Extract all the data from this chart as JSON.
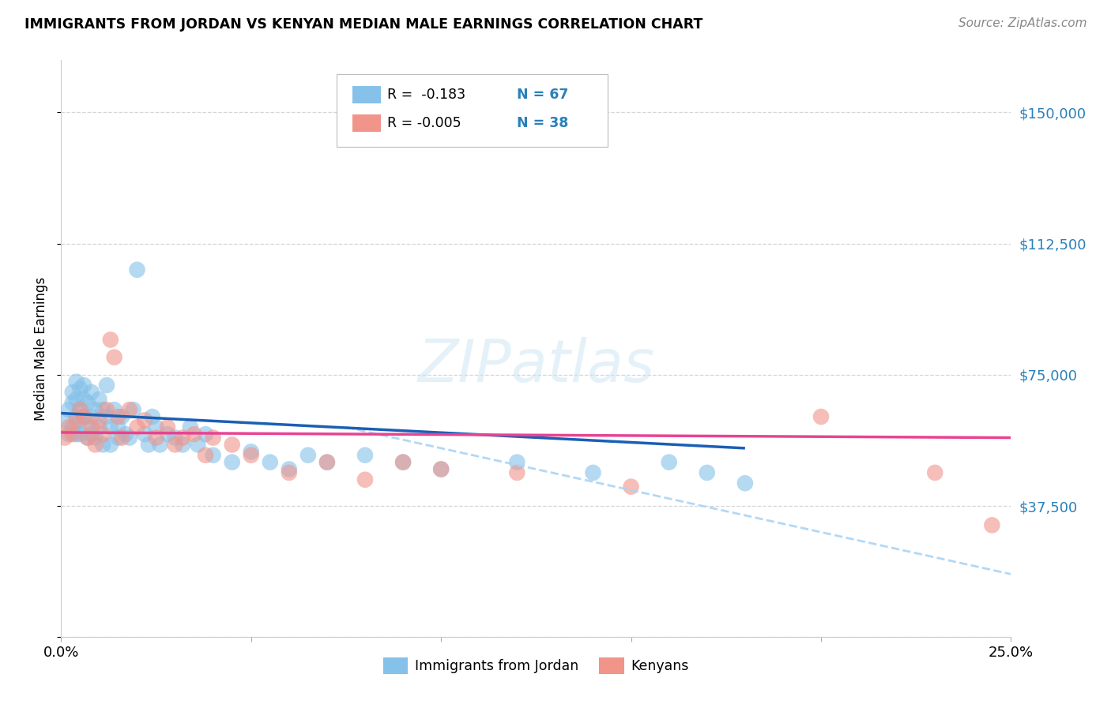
{
  "title": "IMMIGRANTS FROM JORDAN VS KENYAN MEDIAN MALE EARNINGS CORRELATION CHART",
  "source": "Source: ZipAtlas.com",
  "ylabel": "Median Male Earnings",
  "xlim": [
    0.0,
    0.25
  ],
  "ylim": [
    0,
    165000
  ],
  "yticks": [
    0,
    37500,
    75000,
    112500,
    150000
  ],
  "xticks": [
    0.0,
    0.05,
    0.1,
    0.15,
    0.2,
    0.25
  ],
  "xtick_labels": [
    "0.0%",
    "",
    "",
    "",
    "",
    "25.0%"
  ],
  "ytick_labels_right": [
    "$37,500",
    "$75,000",
    "$112,500",
    "$150,000"
  ],
  "ytick_vals_right": [
    37500,
    75000,
    112500,
    150000
  ],
  "legend_R1": "R =  -0.183",
  "legend_N1": "N = 67",
  "legend_R2": "R = -0.005",
  "legend_N2": "N = 38",
  "color_jordan": "#85c1e9",
  "color_kenyan": "#f1948a",
  "color_jordan_line": "#1a5fb4",
  "color_kenyan_line": "#e84393",
  "color_dashed": "#aad4f5",
  "color_ytick_labels": "#2980b9",
  "background_color": "#ffffff",
  "grid_color": "#cccccc",
  "jordan_x": [
    0.001,
    0.002,
    0.002,
    0.003,
    0.003,
    0.003,
    0.004,
    0.004,
    0.004,
    0.004,
    0.005,
    0.005,
    0.005,
    0.005,
    0.006,
    0.006,
    0.006,
    0.007,
    0.007,
    0.007,
    0.008,
    0.008,
    0.008,
    0.009,
    0.009,
    0.01,
    0.01,
    0.011,
    0.011,
    0.012,
    0.012,
    0.013,
    0.013,
    0.014,
    0.015,
    0.015,
    0.016,
    0.017,
    0.018,
    0.019,
    0.02,
    0.022,
    0.023,
    0.024,
    0.025,
    0.026,
    0.028,
    0.03,
    0.032,
    0.034,
    0.036,
    0.038,
    0.04,
    0.045,
    0.05,
    0.055,
    0.06,
    0.065,
    0.07,
    0.08,
    0.09,
    0.1,
    0.12,
    0.14,
    0.16,
    0.17,
    0.18
  ],
  "jordan_y": [
    62000,
    65000,
    58000,
    70000,
    67000,
    60000,
    63000,
    73000,
    68000,
    58000,
    71000,
    65000,
    62000,
    58000,
    68000,
    63000,
    72000,
    67000,
    60000,
    57000,
    70000,
    63000,
    58000,
    65000,
    57000,
    68000,
    60000,
    65000,
    55000,
    63000,
    72000,
    60000,
    55000,
    65000,
    60000,
    57000,
    63000,
    58000,
    57000,
    65000,
    105000,
    58000,
    55000,
    63000,
    60000,
    55000,
    58000,
    57000,
    55000,
    60000,
    55000,
    58000,
    52000,
    50000,
    53000,
    50000,
    48000,
    52000,
    50000,
    52000,
    50000,
    48000,
    50000,
    47000,
    50000,
    47000,
    44000
  ],
  "kenyan_x": [
    0.001,
    0.002,
    0.003,
    0.004,
    0.005,
    0.006,
    0.007,
    0.008,
    0.009,
    0.01,
    0.011,
    0.012,
    0.013,
    0.014,
    0.015,
    0.016,
    0.018,
    0.02,
    0.022,
    0.025,
    0.028,
    0.03,
    0.032,
    0.035,
    0.038,
    0.04,
    0.045,
    0.05,
    0.06,
    0.07,
    0.08,
    0.09,
    0.1,
    0.12,
    0.15,
    0.2,
    0.23,
    0.245
  ],
  "kenyan_y": [
    57000,
    60000,
    58000,
    62000,
    65000,
    63000,
    57000,
    60000,
    55000,
    62000,
    58000,
    65000,
    85000,
    80000,
    63000,
    57000,
    65000,
    60000,
    62000,
    57000,
    60000,
    55000,
    57000,
    58000,
    52000,
    57000,
    55000,
    52000,
    47000,
    50000,
    45000,
    50000,
    48000,
    47000,
    43000,
    63000,
    47000,
    32000
  ],
  "jordan_line_x": [
    0.0,
    0.18
  ],
  "jordan_line_y": [
    64000,
    54000
  ],
  "kenyan_line_x": [
    0.0,
    0.25
  ],
  "kenyan_line_y": [
    58500,
    57000
  ],
  "dashed_line_x": [
    0.075,
    0.25
  ],
  "dashed_line_y": [
    60000,
    18000
  ]
}
